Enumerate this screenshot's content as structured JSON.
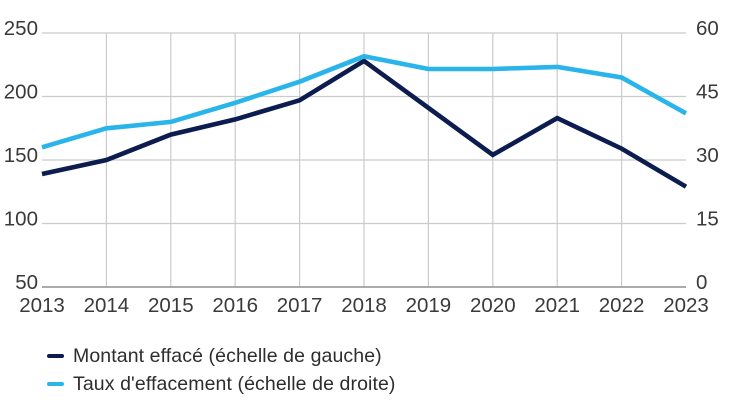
{
  "chart_data": {
    "type": "line",
    "title": "",
    "categories": [
      "2013",
      "2014",
      "2015",
      "2016",
      "2017",
      "2018",
      "2019",
      "2020",
      "2021",
      "2022",
      "2023"
    ],
    "series": [
      {
        "key": "montant-efface",
        "name": "Montant effacé (échelle de gauche)",
        "axis": "left",
        "color": "#0d1c4f",
        "values": [
          139,
          150,
          170,
          182,
          197,
          228,
          191,
          154,
          183,
          159,
          129
        ]
      },
      {
        "key": "taux-effacement",
        "name": "Taux d'effacement (échelle de droite)",
        "axis": "right",
        "color": "#29b5ea",
        "values": [
          33,
          37.5,
          39,
          43.5,
          48.5,
          54.5,
          51.5,
          51.5,
          52,
          49.5,
          41
        ]
      }
    ],
    "left_axis": {
      "min": 50,
      "max": 250,
      "ticks": [
        250,
        200,
        150,
        100,
        50
      ]
    },
    "right_axis": {
      "min": 0,
      "max": 60,
      "ticks": [
        60,
        45,
        30,
        15,
        0
      ]
    },
    "grid": true,
    "legend_position": "bottom-left"
  },
  "colors": {
    "gridline": "#cbcbcb",
    "baseline": "#8f8f8f",
    "tick_label": "#3a3a3a",
    "legend_text": "#2d2d2d",
    "background": "#ffffff"
  }
}
